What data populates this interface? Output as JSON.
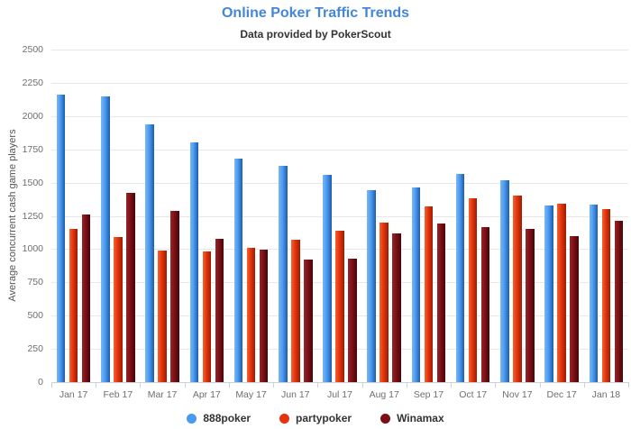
{
  "header": {
    "title": "Online Poker Traffic Trends",
    "subtitle": "Data provided by PokerScout"
  },
  "chart_data": {
    "type": "bar",
    "title": "Online Poker Traffic Trends",
    "subtitle": "Data provided by PokerScout",
    "xlabel": "",
    "ylabel": "Average concurrent cash game players",
    "ylim": [
      0,
      2500
    ],
    "yticks": [
      0,
      250,
      500,
      750,
      1000,
      1250,
      1500,
      1750,
      2000,
      2250,
      2500
    ],
    "grid": true,
    "legend_position": "bottom",
    "categories": [
      "Jan 17",
      "Feb 17",
      "Mar 17",
      "Apr 17",
      "May 17",
      "Jun 17",
      "Jul 17",
      "Aug 17",
      "Sep 17",
      "Oct 17",
      "Nov 17",
      "Dec 17",
      "Jan 18"
    ],
    "series": [
      {
        "name": "888poker",
        "color": "#4a9af0",
        "color_light": "#79b7f6",
        "color_dark": "#1d5cac",
        "values": [
          2160,
          2150,
          1940,
          1800,
          1680,
          1625,
          1560,
          1440,
          1465,
          1565,
          1520,
          1325,
          1335
        ]
      },
      {
        "name": "partypoker",
        "color": "#e5330c",
        "color_light": "#f4632f",
        "color_dark": "#9c1d03",
        "values": [
          1150,
          1090,
          990,
          980,
          1010,
          1070,
          1140,
          1200,
          1320,
          1385,
          1400,
          1340,
          1300
        ]
      },
      {
        "name": "Winamax",
        "color": "#7c1016",
        "color_light": "#96262a",
        "color_dark": "#470509",
        "values": [
          1260,
          1420,
          1290,
          1075,
          995,
          920,
          930,
          1120,
          1190,
          1165,
          1150,
          1095,
          1215
        ]
      }
    ]
  },
  "colors": {
    "title": "#4486d9",
    "subtitle": "#333333",
    "axis_text": "#6e6e6e",
    "gridline": "#e8e8e8",
    "axis_line": "#ccd2d9",
    "background": "#ffffff"
  }
}
